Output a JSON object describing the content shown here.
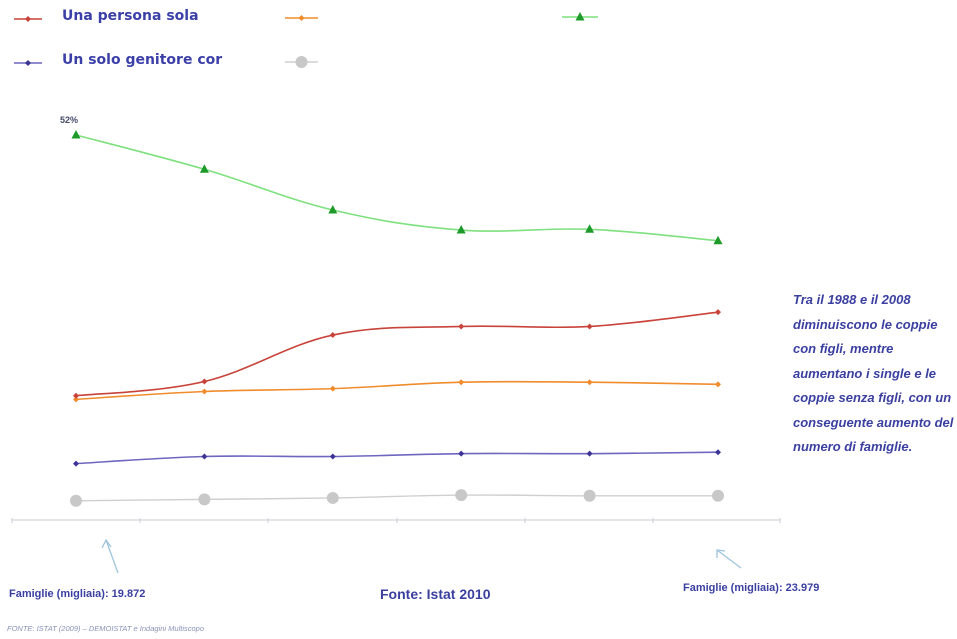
{
  "legend": {
    "items": [
      {
        "label": "Una persona sola",
        "color": "#c8433a",
        "marker": "diamond"
      },
      {
        "label": "",
        "color": "#f08c2c",
        "marker": "diamond"
      },
      {
        "label": "",
        "color": "#1e9a2a",
        "marker": "triangle"
      },
      {
        "label": "Un solo genitore  cor",
        "color": "#3b3496",
        "marker": "diamond"
      },
      {
        "label": "",
        "color": "#c8c8c8",
        "marker": "circle"
      }
    ]
  },
  "chart_data": {
    "type": "line",
    "x": [
      1,
      2,
      3,
      4,
      5,
      6
    ],
    "ylim": [
      0,
      60
    ],
    "grid": false,
    "annotations": [
      {
        "text": "52%",
        "series": 2,
        "point": 0
      }
    ],
    "series": [
      {
        "name": "Una persona sola",
        "color": "#c8433a",
        "line_color": "#c8433a",
        "marker": "diamond",
        "values": [
          15.5,
          17.5,
          24.0,
          25.2,
          25.2,
          27.2
        ]
      },
      {
        "name": "",
        "color": "#f08c2c",
        "line_color": "#f08c2c",
        "marker": "diamond",
        "values": [
          15.0,
          16.1,
          16.5,
          17.4,
          17.4,
          17.1
        ]
      },
      {
        "name": "",
        "color": "#1e9a2a",
        "line_color": "#7ee07e",
        "marker": "triangle",
        "values": [
          52.0,
          47.2,
          41.5,
          38.7,
          38.8,
          37.2
        ]
      },
      {
        "name": "Un solo genitore  cor",
        "color": "#3b3496",
        "line_color": "#6d67c0",
        "marker": "diamond",
        "values": [
          6.0,
          7.0,
          7.0,
          7.4,
          7.4,
          7.6
        ]
      },
      {
        "name": "",
        "color": "#c8c8c8",
        "line_color": "#cfcfcf",
        "marker": "circle",
        "values": [
          0.8,
          1.0,
          1.2,
          1.6,
          1.5,
          1.5
        ]
      }
    ]
  },
  "note": "Tra il 1988 e il 2008 diminuiscono le coppie con figli, mentre aumentano i single e le coppie senza figli, con un conseguente aumento del numero di famiglie.",
  "captions": {
    "left": "Famiglie (migliaia): 19.872",
    "middle": "Fonte: Istat 2010",
    "right": "Famiglie (migliaia):  23.979"
  },
  "footer": "FONTE: ISTAT (2009) – DEMOISTAT  e Indagini Multiscopo"
}
